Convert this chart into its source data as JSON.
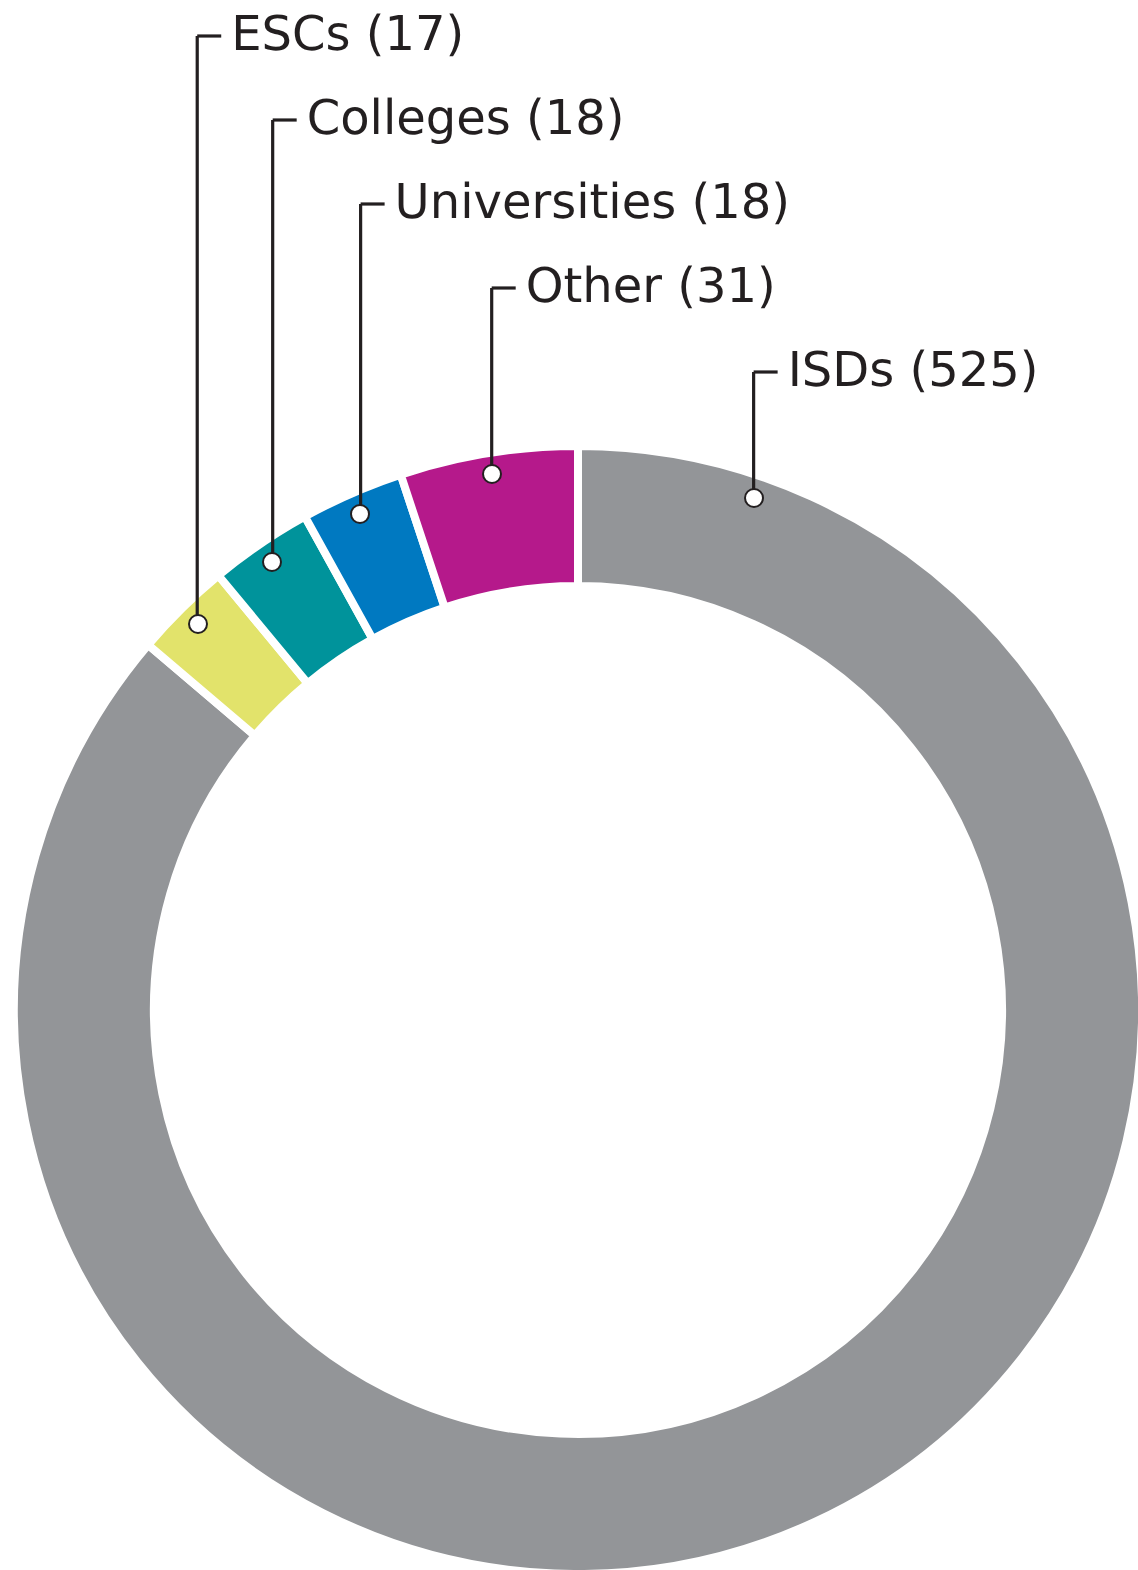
{
  "chart_data": {
    "type": "donut",
    "categories": [
      "ISDs (525)",
      "ESCs (17)",
      "Colleges (18)",
      "Universities (18)",
      "Other (31)"
    ],
    "values": [
      525,
      17,
      18,
      18,
      31
    ],
    "colors": [
      "#939598",
      "#e2e36b",
      "#00939b",
      "#0079c1",
      "#b5198b"
    ]
  }
}
